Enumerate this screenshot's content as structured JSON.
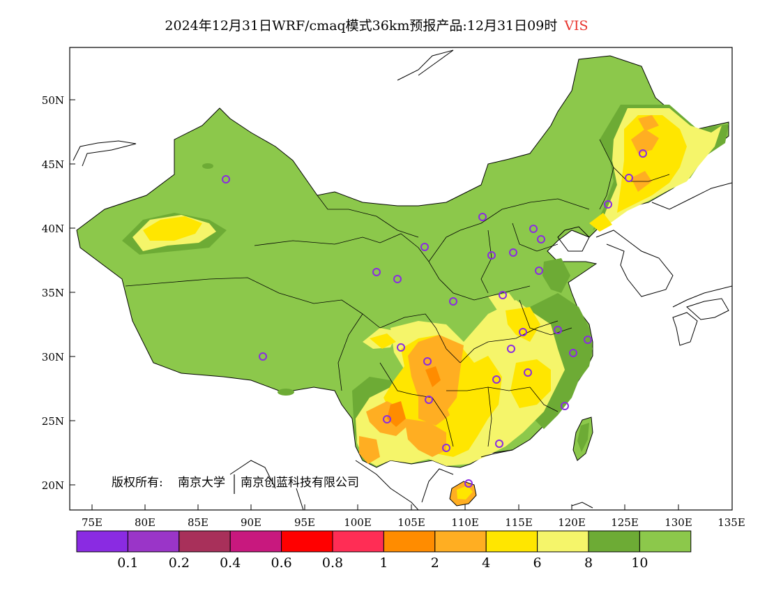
{
  "title": {
    "main": "2024年12月31日WRF/cmaq模式36km预报产品:12月31日09时",
    "variable": "VIS"
  },
  "copyright": {
    "prefix": "版权所有:",
    "org1": "南京大学",
    "org2": "南京创蓝科技有限公司"
  },
  "axes": {
    "lat_labels": [
      "50N",
      "45N",
      "40N",
      "35N",
      "30N",
      "25N",
      "20N"
    ],
    "lon_labels": [
      "75E",
      "80E",
      "85E",
      "90E",
      "95E",
      "100E",
      "105E",
      "110E",
      "115E",
      "120E",
      "125E",
      "130E",
      "135E"
    ]
  },
  "colorbar": {
    "colors": [
      "#8a2be2",
      "#9a35c8",
      "#a8305a",
      "#c8187e",
      "#ff0000",
      "#ff2d55",
      "#ff8c00",
      "#ffae22",
      "#ffe600",
      "#f5f56a",
      "#6dab35",
      "#8cc84b"
    ],
    "labels": [
      "0.1",
      "0.2",
      "0.4",
      "0.6",
      "0.8",
      "1",
      "2",
      "4",
      "6",
      "8",
      "10"
    ]
  },
  "map_colors": {
    "green": "#8cc84b",
    "dark_green": "#6dab35",
    "light_yellow": "#f5f56a",
    "yellow": "#ffe600",
    "orange": "#ffae22",
    "dark_orange": "#ff8c00",
    "station_ring": "#8a2be2"
  }
}
